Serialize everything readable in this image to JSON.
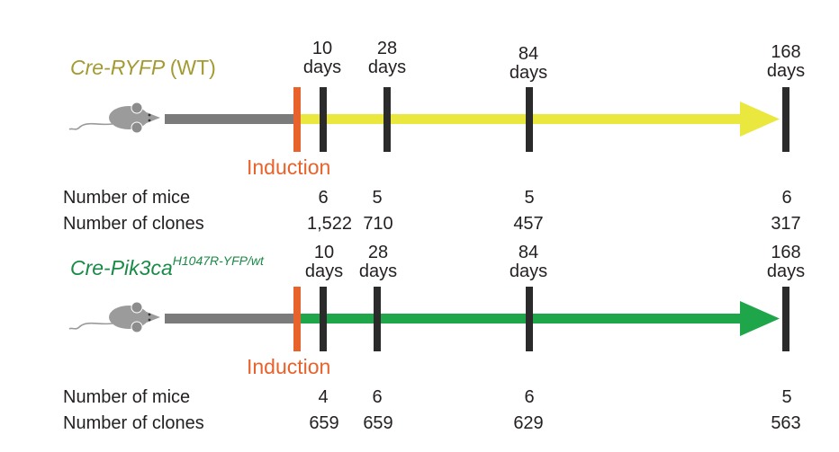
{
  "panels": [
    {
      "strain_name": "Cre-RYFP",
      "strain_suffix": "(WT)",
      "strain_color": "#a39a32",
      "arrow_color": "#eae73e",
      "induction_label": "Induction",
      "induction_color": "#e8622c",
      "timepoints": [
        {
          "value": "10",
          "unit": "days"
        },
        {
          "value": "28",
          "unit": "days"
        },
        {
          "value": "84",
          "unit": "days"
        },
        {
          "value": "168",
          "unit": "days"
        }
      ],
      "mice_label": "Number of mice",
      "clones_label": "Number of clones",
      "mice": [
        "6",
        "5",
        "5",
        "6"
      ],
      "clones": [
        "1,522",
        "710",
        "457",
        "317"
      ]
    },
    {
      "strain_name": "Cre-Pik3ca",
      "strain_sup": "H1047R-YFP/wt",
      "strain_color": "#1a8a47",
      "arrow_color": "#1fa64a",
      "induction_label": "Induction",
      "induction_color": "#e8622c",
      "timepoints": [
        {
          "value": "10",
          "unit": "days"
        },
        {
          "value": "28",
          "unit": "days"
        },
        {
          "value": "84",
          "unit": "days"
        },
        {
          "value": "168",
          "unit": "days"
        }
      ],
      "mice_label": "Number of mice",
      "clones_label": "Number of clones",
      "mice": [
        "4",
        "6",
        "6",
        "5"
      ],
      "clones": [
        "659",
        "659",
        "629",
        "563"
      ]
    }
  ],
  "icons": {
    "mouse": "mouse-icon",
    "arrow": "timeline-arrow-icon"
  }
}
